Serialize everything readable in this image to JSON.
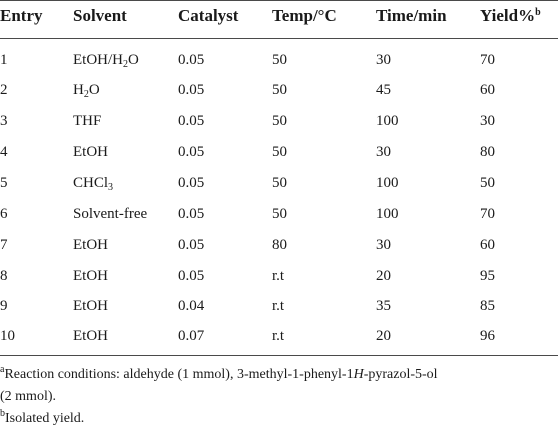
{
  "table": {
    "headers": {
      "entry": "Entry",
      "solvent": "Solvent",
      "catalyst": "Catalyst",
      "temp": "Temp/°C",
      "time": "Time/min",
      "yield": "Yield%",
      "yield_sup": "b"
    },
    "rows": [
      {
        "entry": "1",
        "solvent": "EtOH/H",
        "solvent_sub": "2",
        "solvent_rest": "O",
        "catalyst": "0.05",
        "temp": "50",
        "time": "30",
        "yield": "70"
      },
      {
        "entry": "2",
        "solvent": "H",
        "solvent_sub": "2",
        "solvent_rest": "O",
        "catalyst": "0.05",
        "temp": "50",
        "time": "45",
        "yield": "60"
      },
      {
        "entry": "3",
        "solvent": "THF",
        "solvent_sub": "",
        "solvent_rest": "",
        "catalyst": "0.05",
        "temp": "50",
        "time": "100",
        "yield": "30"
      },
      {
        "entry": "4",
        "solvent": "EtOH",
        "solvent_sub": "",
        "solvent_rest": "",
        "catalyst": "0.05",
        "temp": "50",
        "time": "30",
        "yield": "80"
      },
      {
        "entry": "5",
        "solvent": "CHCl",
        "solvent_sub": "3",
        "solvent_rest": "",
        "catalyst": "0.05",
        "temp": "50",
        "time": "100",
        "yield": "50"
      },
      {
        "entry": "6",
        "solvent": "Solvent-free",
        "solvent_sub": "",
        "solvent_rest": "",
        "catalyst": "0.05",
        "temp": "50",
        "time": "100",
        "yield": "70"
      },
      {
        "entry": "7",
        "solvent": "EtOH",
        "solvent_sub": "",
        "solvent_rest": "",
        "catalyst": "0.05",
        "temp": "80",
        "time": "30",
        "yield": "60"
      },
      {
        "entry": "8",
        "solvent": "EtOH",
        "solvent_sub": "",
        "solvent_rest": "",
        "catalyst": "0.05",
        "temp": "r.t",
        "time": "20",
        "yield": "95"
      },
      {
        "entry": "9",
        "solvent": "EtOH",
        "solvent_sub": "",
        "solvent_rest": "",
        "catalyst": "0.04",
        "temp": "r.t",
        "time": "35",
        "yield": "85"
      },
      {
        "entry": "10",
        "solvent": "EtOH",
        "solvent_sub": "",
        "solvent_rest": "",
        "catalyst": "0.07",
        "temp": "r.t",
        "time": "20",
        "yield": "96"
      }
    ]
  },
  "footnotes": {
    "a_mark": "a",
    "a_text_1": "Reaction conditions: aldehyde (1 mmol), 3-methyl-1-phenyl-1",
    "a_italic": "H",
    "a_text_2": "-pyrazol-5-ol",
    "a_text_3": "(2 mmol).",
    "b_mark": "b",
    "b_text": "Isolated yield."
  }
}
